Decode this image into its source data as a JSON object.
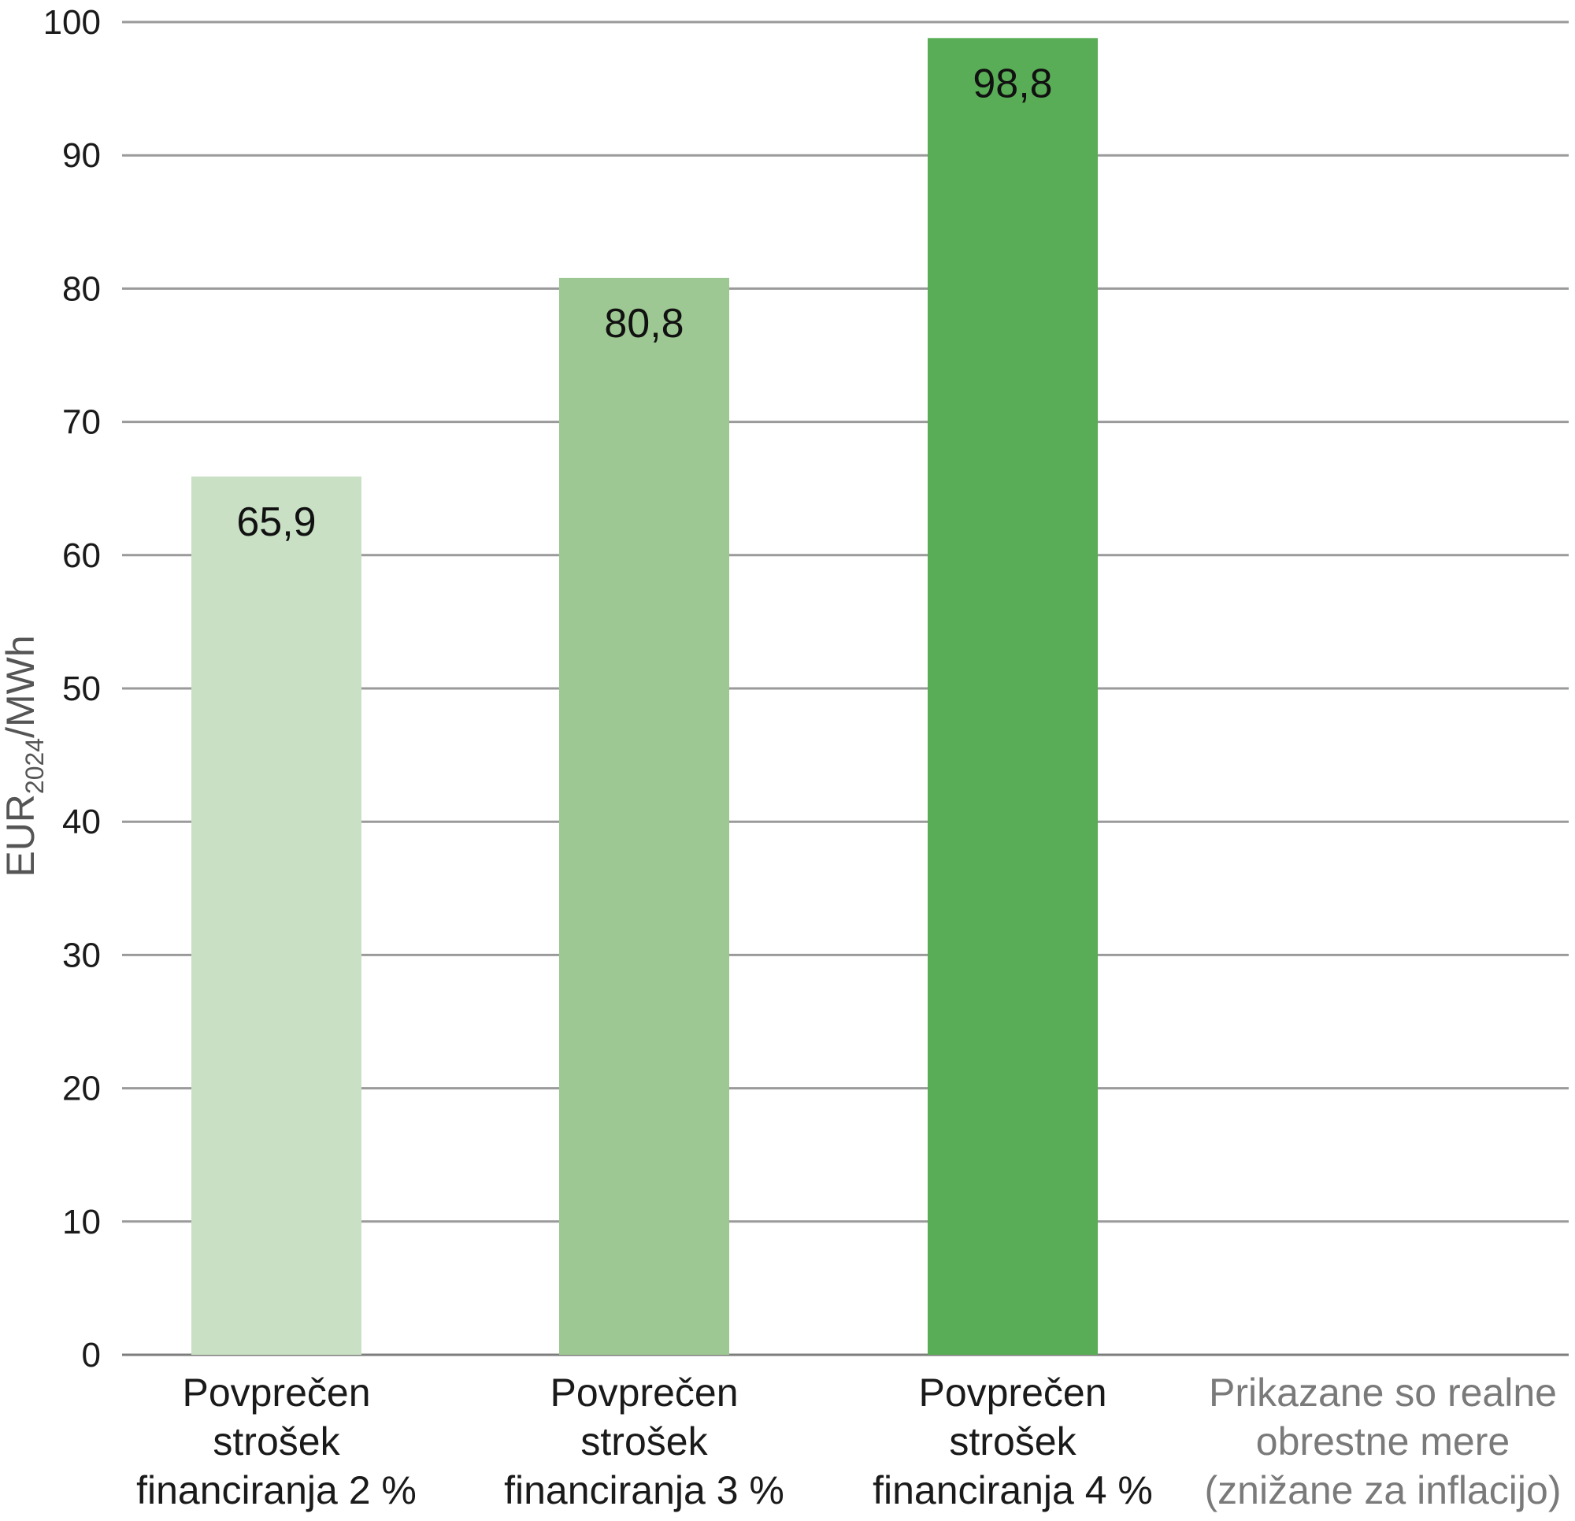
{
  "chart_data": {
    "type": "bar",
    "categories": [
      [
        "Povprečen",
        "strošek",
        "financiranja 2 %"
      ],
      [
        "Povprečen",
        "strošek",
        "financiranja 3 %"
      ],
      [
        "Povprečen",
        "strošek",
        "financiranja 4 %"
      ]
    ],
    "values": [
      65.9,
      80.8,
      98.8
    ],
    "value_labels": [
      "65,9",
      "80,8",
      "98,8"
    ],
    "bar_colors": [
      "#c9e0c5",
      "#9ec893",
      "#5aad57"
    ],
    "ylabel": {
      "main": "EUR",
      "sub": "2024",
      "unit": "/MWh"
    },
    "ylim": [
      0,
      100
    ],
    "yticks": [
      0,
      10,
      20,
      30,
      40,
      50,
      60,
      70,
      80,
      90,
      100
    ],
    "grid": true,
    "note": [
      "Prikazane so realne",
      "obrestne mere",
      "(znižane za inflacijo)"
    ]
  }
}
